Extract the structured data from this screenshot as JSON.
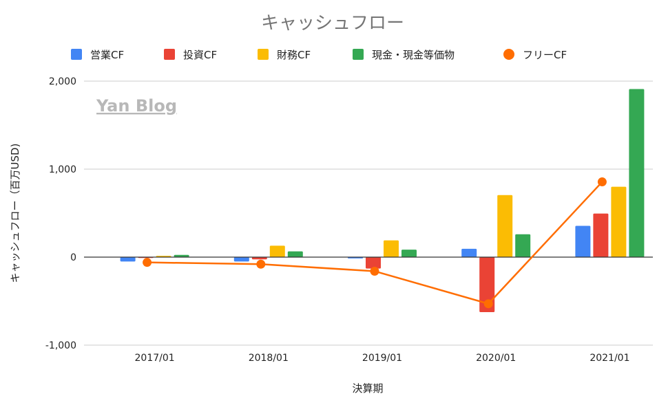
{
  "chart_data": {
    "type": "bar",
    "title": "キャッシュフロー",
    "watermark": "Yan Blog",
    "xlabel": "決算期",
    "ylabel": "キャッシュフロー（百万USD)",
    "ylim": [
      -1000,
      2000
    ],
    "yticks": [
      -1000,
      0,
      1000,
      2000
    ],
    "ytick_labels": [
      "-1,000",
      "0",
      "1,000",
      "2,000"
    ],
    "grid": true,
    "legend_position": "top",
    "categories": [
      "2017/01",
      "2018/01",
      "2019/01",
      "2020/01",
      "2021/01"
    ],
    "series": [
      {
        "name": "営業CF",
        "kind": "bar",
        "color": "#4285f4",
        "values": [
          -50,
          -50,
          -15,
          95,
          355
        ]
      },
      {
        "name": "投資CF",
        "kind": "bar",
        "color": "#ea4335",
        "values": [
          -10,
          -25,
          -130,
          -625,
          495
        ]
      },
      {
        "name": "財務CF",
        "kind": "bar",
        "color": "#fbbc04",
        "values": [
          15,
          130,
          190,
          705,
          800
        ]
      },
      {
        "name": "現金・現金等価物",
        "kind": "bar",
        "color": "#34a853",
        "values": [
          25,
          65,
          85,
          260,
          1910
        ]
      },
      {
        "name": "フリーCF",
        "kind": "line",
        "color": "#ff6d01",
        "values": [
          -60,
          -80,
          -160,
          -530,
          855
        ]
      }
    ]
  }
}
